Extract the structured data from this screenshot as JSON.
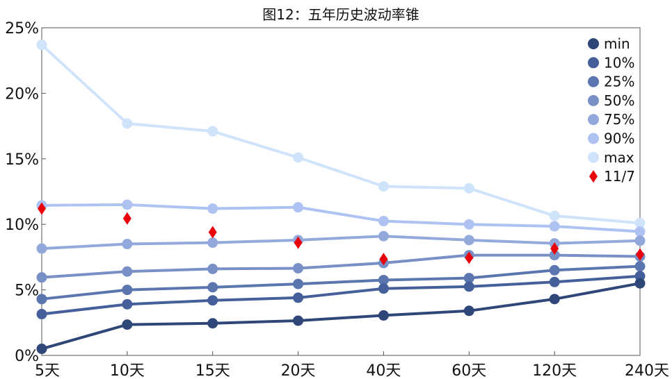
{
  "chart_data": {
    "type": "line",
    "title": "图12：五年历史波动率锥",
    "xlabel": "",
    "ylabel": "",
    "categories": [
      "5天",
      "10天",
      "15天",
      "20天",
      "40天",
      "60天",
      "120天",
      "240天"
    ],
    "ylim": [
      0,
      25
    ],
    "yticks": [
      0,
      5,
      10,
      15,
      20,
      25
    ],
    "ytick_labels": [
      "0%",
      "5%",
      "10%",
      "15%",
      "20%",
      "25%"
    ],
    "grid": false,
    "legend_position": "top-right",
    "series": [
      {
        "name": "min",
        "color": "#2f4778",
        "values": [
          0.5,
          2.35,
          2.45,
          2.65,
          3.05,
          3.4,
          4.3,
          5.5
        ]
      },
      {
        "name": "10%",
        "color": "#445f99",
        "values": [
          3.15,
          3.9,
          4.2,
          4.4,
          5.1,
          5.25,
          5.6,
          6.05
        ]
      },
      {
        "name": "25%",
        "color": "#5b76ae",
        "values": [
          4.3,
          5.0,
          5.2,
          5.45,
          5.75,
          5.9,
          6.5,
          6.8
        ]
      },
      {
        "name": "50%",
        "color": "#7890c6",
        "values": [
          5.95,
          6.4,
          6.6,
          6.65,
          7.05,
          7.65,
          7.65,
          7.55
        ]
      },
      {
        "name": "75%",
        "color": "#93a9dc",
        "values": [
          8.15,
          8.5,
          8.6,
          8.8,
          9.1,
          8.8,
          8.55,
          8.75
        ]
      },
      {
        "name": "90%",
        "color": "#aec3f2",
        "values": [
          11.45,
          11.5,
          11.2,
          11.3,
          10.25,
          10.0,
          9.85,
          9.45
        ]
      },
      {
        "name": "max",
        "color": "#cfe3fb",
        "values": [
          23.7,
          17.7,
          17.1,
          15.1,
          12.9,
          12.75,
          10.65,
          10.1
        ]
      }
    ],
    "markers": {
      "name": "11/7",
      "color": "#e8000b",
      "values": [
        11.2,
        10.45,
        9.4,
        8.6,
        7.35,
        7.45,
        8.15,
        7.7
      ]
    }
  }
}
